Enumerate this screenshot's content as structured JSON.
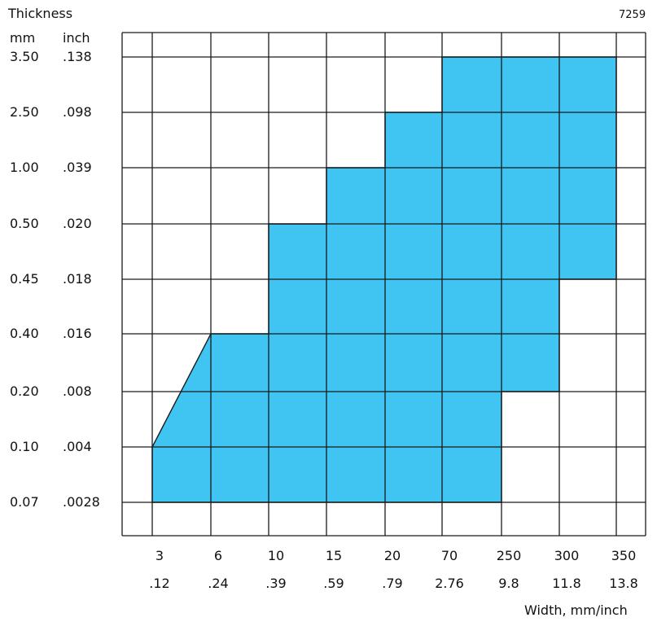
{
  "figure_id": "7259",
  "thickness_header": "Thickness",
  "unit_mm": "mm",
  "unit_inch": "inch",
  "width_label": "Width, mm/inch",
  "chart_data": {
    "type": "area",
    "title": "",
    "ylabel": "Thickness",
    "xlabel": "Width, mm/inch",
    "grid": true,
    "x_categories_mm": [
      "3",
      "6",
      "10",
      "15",
      "20",
      "70",
      "250",
      "300",
      "350"
    ],
    "x_categories_inch": [
      ".12",
      ".24",
      ".39",
      ".59",
      ".79",
      "2.76",
      "9.8",
      "11.8",
      "13.8"
    ],
    "y_categories_mm": [
      "3.50",
      "2.50",
      "1.00",
      "0.50",
      "0.45",
      "0.40",
      "0.20",
      "0.10",
      "0.07"
    ],
    "y_categories_inch": [
      ".138",
      ".098",
      ".039",
      ".020",
      ".018",
      ".016",
      ".008",
      ".004",
      ".0028"
    ],
    "fill_color": "#40C4F2",
    "region_outline_mm": [
      [
        3,
        0.07
      ],
      [
        3,
        0.1
      ],
      [
        6,
        0.4
      ],
      [
        10,
        0.4
      ],
      [
        10,
        0.5
      ],
      [
        15,
        0.5
      ],
      [
        15,
        1.0
      ],
      [
        20,
        1.0
      ],
      [
        20,
        2.5
      ],
      [
        70,
        2.5
      ],
      [
        70,
        3.5
      ],
      [
        350,
        3.5
      ],
      [
        350,
        0.45
      ],
      [
        300,
        0.45
      ],
      [
        300,
        0.2
      ],
      [
        250,
        0.2
      ],
      [
        250,
        0.07
      ]
    ]
  }
}
